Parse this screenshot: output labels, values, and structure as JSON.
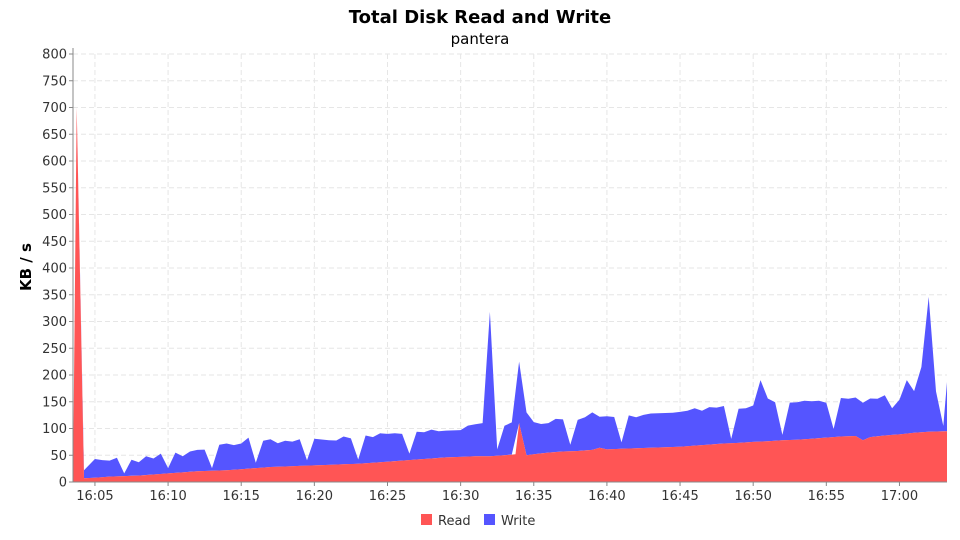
{
  "chart_data": {
    "type": "area",
    "stacked": true,
    "title": "Total Disk Read and Write",
    "subtitle": "pantera",
    "xlabel": "",
    "ylabel": "KB / s",
    "ylim": [
      0,
      800
    ],
    "yticks": [
      0,
      50,
      100,
      150,
      200,
      250,
      300,
      350,
      400,
      450,
      500,
      550,
      600,
      650,
      700,
      750,
      800
    ],
    "xlim": [
      "16:03:30",
      "17:03:15"
    ],
    "xticks": [
      "16:05",
      "16:10",
      "16:15",
      "16:20",
      "16:25",
      "16:30",
      "16:35",
      "16:40",
      "16:45",
      "16:50",
      "16:55",
      "17:00"
    ],
    "grid": true,
    "legend_position": "bottom",
    "series": [
      {
        "name": "Read",
        "color": "#ff5555",
        "points": [
          [
            "16:03:30",
            0
          ],
          [
            "16:03:45",
            700
          ],
          [
            "16:04:15",
            7
          ],
          [
            "16:05:00",
            8
          ],
          [
            "16:06:00",
            10
          ],
          [
            "16:07:00",
            11
          ],
          [
            "16:08:00",
            12
          ],
          [
            "16:09:00",
            14
          ],
          [
            "16:10:00",
            16
          ],
          [
            "16:11:00",
            18
          ],
          [
            "16:12:00",
            20
          ],
          [
            "16:13:00",
            21
          ],
          [
            "16:14:00",
            22
          ],
          [
            "16:15:00",
            24
          ],
          [
            "16:16:00",
            26
          ],
          [
            "16:17:00",
            28
          ],
          [
            "16:18:00",
            29
          ],
          [
            "16:19:00",
            30
          ],
          [
            "16:20:00",
            31
          ],
          [
            "16:21:00",
            32
          ],
          [
            "16:22:00",
            33
          ],
          [
            "16:23:00",
            34
          ],
          [
            "16:24:00",
            36
          ],
          [
            "16:25:00",
            38
          ],
          [
            "16:26:00",
            40
          ],
          [
            "16:27:00",
            42
          ],
          [
            "16:28:00",
            44
          ],
          [
            "16:29:00",
            46
          ],
          [
            "16:30:00",
            47
          ],
          [
            "16:31:00",
            48
          ],
          [
            "16:32:00",
            48
          ],
          [
            "16:33:00",
            50
          ],
          [
            "16:33:45",
            52
          ],
          [
            "16:34:00",
            110
          ],
          [
            "16:34:30",
            50
          ],
          [
            "16:35:00",
            52
          ],
          [
            "16:36:00",
            55
          ],
          [
            "16:37:00",
            57
          ],
          [
            "16:38:00",
            58
          ],
          [
            "16:39:00",
            60
          ],
          [
            "16:39:30",
            64
          ],
          [
            "16:40:00",
            61
          ],
          [
            "16:41:00",
            62
          ],
          [
            "16:42:00",
            63
          ],
          [
            "16:43:00",
            64
          ],
          [
            "16:44:00",
            65
          ],
          [
            "16:45:00",
            66
          ],
          [
            "16:46:00",
            68
          ],
          [
            "16:47:00",
            70
          ],
          [
            "16:48:00",
            72
          ],
          [
            "16:49:00",
            73
          ],
          [
            "16:50:00",
            75
          ],
          [
            "16:51:00",
            76
          ],
          [
            "16:52:00",
            78
          ],
          [
            "16:53:00",
            79
          ],
          [
            "16:54:00",
            81
          ],
          [
            "16:55:00",
            83
          ],
          [
            "16:56:00",
            85
          ],
          [
            "16:57:00",
            86
          ],
          [
            "16:57:30",
            78
          ],
          [
            "16:58:00",
            84
          ],
          [
            "16:59:00",
            87
          ],
          [
            "17:00:00",
            89
          ],
          [
            "17:01:00",
            92
          ],
          [
            "17:02:00",
            94
          ],
          [
            "17:03:15",
            95
          ]
        ]
      },
      {
        "name": "Write",
        "color": "#5555ff",
        "points": [
          [
            "16:03:30",
            0
          ],
          [
            "16:03:45",
            0
          ],
          [
            "16:04:15",
            15
          ],
          [
            "16:05:00",
            35
          ],
          [
            "16:05:30",
            32
          ],
          [
            "16:06:00",
            30
          ],
          [
            "16:06:30",
            35
          ],
          [
            "16:07:00",
            5
          ],
          [
            "16:07:30",
            30
          ],
          [
            "16:08:00",
            25
          ],
          [
            "16:08:30",
            35
          ],
          [
            "16:09:00",
            30
          ],
          [
            "16:09:30",
            38
          ],
          [
            "16:10:00",
            10
          ],
          [
            "16:10:30",
            38
          ],
          [
            "16:11:00",
            30
          ],
          [
            "16:11:30",
            38
          ],
          [
            "16:12:00",
            40
          ],
          [
            "16:12:30",
            40
          ],
          [
            "16:13:00",
            5
          ],
          [
            "16:13:30",
            48
          ],
          [
            "16:14:00",
            50
          ],
          [
            "16:14:30",
            46
          ],
          [
            "16:15:00",
            48
          ],
          [
            "16:15:30",
            58
          ],
          [
            "16:16:00",
            10
          ],
          [
            "16:16:30",
            50
          ],
          [
            "16:17:00",
            52
          ],
          [
            "16:17:30",
            44
          ],
          [
            "16:18:00",
            48
          ],
          [
            "16:18:30",
            46
          ],
          [
            "16:19:00",
            50
          ],
          [
            "16:19:30",
            10
          ],
          [
            "16:20:00",
            50
          ],
          [
            "16:20:30",
            48
          ],
          [
            "16:21:00",
            46
          ],
          [
            "16:21:30",
            45
          ],
          [
            "16:22:00",
            52
          ],
          [
            "16:22:30",
            48
          ],
          [
            "16:23:00",
            8
          ],
          [
            "16:23:30",
            52
          ],
          [
            "16:24:00",
            48
          ],
          [
            "16:24:30",
            54
          ],
          [
            "16:25:00",
            52
          ],
          [
            "16:25:30",
            52
          ],
          [
            "16:26:00",
            50
          ],
          [
            "16:26:30",
            12
          ],
          [
            "16:27:00",
            52
          ],
          [
            "16:27:30",
            50
          ],
          [
            "16:28:00",
            54
          ],
          [
            "16:28:30",
            50
          ],
          [
            "16:29:00",
            50
          ],
          [
            "16:29:30",
            50
          ],
          [
            "16:30:00",
            50
          ],
          [
            "16:30:30",
            58
          ],
          [
            "16:31:00",
            60
          ],
          [
            "16:31:30",
            62
          ],
          [
            "16:32:00",
            270
          ],
          [
            "16:32:30",
            12
          ],
          [
            "16:33:00",
            55
          ],
          [
            "16:33:30",
            60
          ],
          [
            "16:34:00",
            115
          ],
          [
            "16:34:30",
            80
          ],
          [
            "16:35:00",
            60
          ],
          [
            "16:35:30",
            55
          ],
          [
            "16:36:00",
            55
          ],
          [
            "16:36:30",
            62
          ],
          [
            "16:37:00",
            60
          ],
          [
            "16:37:30",
            12
          ],
          [
            "16:38:00",
            58
          ],
          [
            "16:38:30",
            62
          ],
          [
            "16:39:00",
            70
          ],
          [
            "16:39:30",
            58
          ],
          [
            "16:40:00",
            62
          ],
          [
            "16:40:30",
            60
          ],
          [
            "16:41:00",
            12
          ],
          [
            "16:41:30",
            62
          ],
          [
            "16:42:00",
            58
          ],
          [
            "16:42:30",
            62
          ],
          [
            "16:43:00",
            64
          ],
          [
            "16:43:30",
            64
          ],
          [
            "16:44:00",
            64
          ],
          [
            "16:44:30",
            64
          ],
          [
            "16:45:00",
            65
          ],
          [
            "16:45:30",
            66
          ],
          [
            "16:46:00",
            70
          ],
          [
            "16:46:30",
            64
          ],
          [
            "16:47:00",
            70
          ],
          [
            "16:47:30",
            68
          ],
          [
            "16:48:00",
            70
          ],
          [
            "16:48:30",
            8
          ],
          [
            "16:49:00",
            64
          ],
          [
            "16:49:30",
            64
          ],
          [
            "16:50:00",
            68
          ],
          [
            "16:50:30",
            115
          ],
          [
            "16:51:00",
            80
          ],
          [
            "16:51:30",
            72
          ],
          [
            "16:52:00",
            10
          ],
          [
            "16:52:30",
            70
          ],
          [
            "16:53:00",
            70
          ],
          [
            "16:53:30",
            72
          ],
          [
            "16:54:00",
            70
          ],
          [
            "16:54:30",
            70
          ],
          [
            "16:55:00",
            65
          ],
          [
            "16:55:30",
            15
          ],
          [
            "16:56:00",
            72
          ],
          [
            "16:56:30",
            70
          ],
          [
            "16:57:00",
            72
          ],
          [
            "16:57:30",
            70
          ],
          [
            "16:58:00",
            72
          ],
          [
            "16:58:30",
            70
          ],
          [
            "16:59:00",
            75
          ],
          [
            "16:59:30",
            50
          ],
          [
            "17:00:00",
            65
          ],
          [
            "17:00:30",
            100
          ],
          [
            "17:01:00",
            78
          ],
          [
            "17:01:30",
            122
          ],
          [
            "17:02:00",
            252
          ],
          [
            "17:02:30",
            75
          ],
          [
            "17:03:00",
            10
          ],
          [
            "17:03:15",
            92
          ]
        ]
      }
    ]
  }
}
